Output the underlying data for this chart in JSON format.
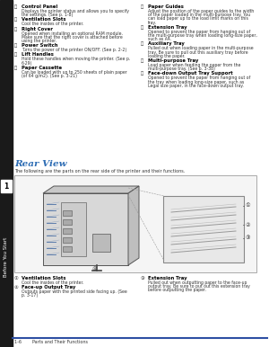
{
  "page_bg": "#ffffff",
  "sidebar_bg": "#1a1a1a",
  "sidebar_text": "Before You Start",
  "blue_line_color": "#2e4fa3",
  "footer_text": "1-6        Parts and Their Functions",
  "section_title": "Rear View",
  "section_title_color": "#2e6db4",
  "section_subtitle": "The following are the parts on the rear side of the printer and their functions.",
  "left_column": [
    {
      "label": "c",
      "bold": "Control Panel",
      "text": "Displays the printer status and allows you to specify\nthe settings. (See p. 1-8)"
    },
    {
      "label": "d",
      "bold": "Ventilation Slots",
      "text": "Cool the insides of the printer."
    },
    {
      "label": "e",
      "bold": "Right Cover",
      "text": "Opened when installing an optional RAM module.\nMake sure that the right cover is attached before\nusing the printer."
    },
    {
      "label": "f",
      "bold": "Power Switch",
      "text": "Turns the power of the printer ON/OFF. (See p. 2-2)"
    },
    {
      "label": "g",
      "bold": "Lift Handles",
      "text": "Hold these handles when moving the printer. (See p.\n6-29)"
    },
    {
      "label": "h",
      "bold": "Paper Cassette",
      "text": "Can be loaded with up to 250 sheets of plain paper\n(of 64 g/m2). (See p. 3-21)"
    }
  ],
  "right_column": [
    {
      "label": "i",
      "bold": "Paper Guides",
      "text": "Adjust the position of the paper guides to the width\nof the paper loaded in the multi-purpose tray. You\ncan load paper up to the load limit marks on this\ntray."
    },
    {
      "label": "j",
      "bold": "Extension Tray",
      "text": "Opened to prevent the paper from hanging out of\nthe multi-purpose tray when loading long-size paper,\nsuch as A4."
    },
    {
      "label": "k",
      "bold": "Auxiliary Tray",
      "text": "Pulled out when loading paper in the multi-purpose\ntray. Be sure to pull out this auxiliary tray before\nloading the paper."
    },
    {
      "label": "l",
      "bold": "Multi-purpose Tray",
      "text": "Load paper when feeding the paper from the\nmulti-purpose tray. (See p. 3-38)"
    },
    {
      "label": "m",
      "bold": "Face-down Output Tray Support",
      "text": "Opened to prevent the paper from hanging out of\nthe tray when loading long-size paper, such as\nLegal size paper, in the face-down output tray."
    }
  ],
  "bottom_left": [
    {
      "label": "1",
      "bold": "Ventilation Slots",
      "text": "Cool the insides of the printer."
    },
    {
      "label": "2",
      "bold": "Face-up Output Tray",
      "text": "Outputs paper with the printed side facing up. (See\np. 3-17)"
    }
  ],
  "bottom_right": [
    {
      "label": "3",
      "bold": "Extension Tray",
      "text": "Pulled out when outputting paper to the face-up\noutput tray. Be sure to put out this extension tray\nbefore outputting the paper."
    }
  ]
}
